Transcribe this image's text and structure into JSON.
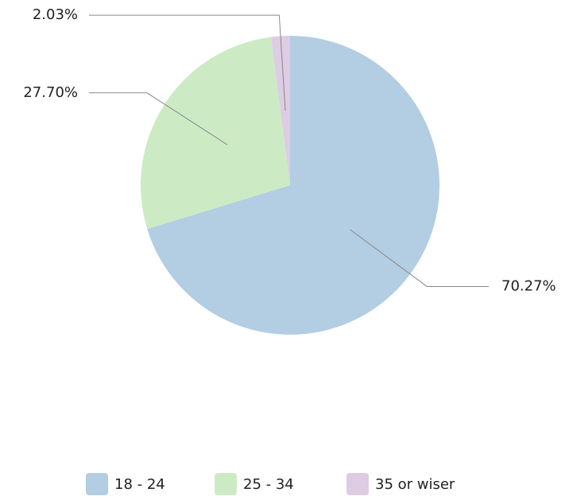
{
  "chart_data": {
    "type": "pie",
    "categories": [
      "18 - 24",
      "25 - 34",
      "35 or wiser"
    ],
    "values": [
      70.27,
      27.7,
      2.03
    ],
    "value_labels": [
      "70.27%",
      "27.70%",
      "2.03%"
    ],
    "colors": [
      "#b3cde3",
      "#ccebc5",
      "#decbe4"
    ],
    "legend": "bottom"
  }
}
